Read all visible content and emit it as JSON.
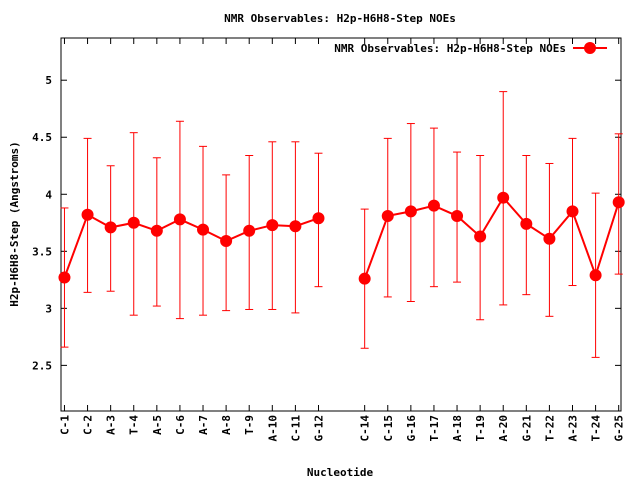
{
  "chart_data": {
    "type": "line",
    "title": "NMR Observables: H2p-H6H8-Step NOEs",
    "xlabel": "Nucleotide",
    "ylabel": "H2p-H6H8-Step (Angstroms)",
    "ylim": [
      2.1,
      5.37
    ],
    "yticks": [
      2.5,
      3,
      3.5,
      4,
      4.5,
      5
    ],
    "ytick_labels": [
      "2.5",
      "3",
      "3.5",
      "4",
      "4.5",
      "5"
    ],
    "legend": "top-right",
    "grid": false,
    "categories": [
      "C-1",
      "C-2",
      "A-3",
      "T-4",
      "A-5",
      "C-6",
      "A-7",
      "A-8",
      "T-9",
      "A-10",
      "C-11",
      "G-12",
      "C-14",
      "C-15",
      "G-16",
      "T-17",
      "A-18",
      "T-19",
      "A-20",
      "G-21",
      "T-22",
      "A-23",
      "T-24",
      "G-25"
    ],
    "x": [
      1,
      2,
      3,
      4,
      5,
      6,
      7,
      8,
      9,
      10,
      11,
      12,
      14,
      15,
      16,
      17,
      18,
      19,
      20,
      21,
      22,
      23,
      24,
      25
    ],
    "xlim": [
      0.85,
      25.1
    ],
    "series": [
      {
        "name": "NMR Observables: H2p-H6H8-Step NOEs",
        "color": "#ff0000",
        "segments": [
          [
            0,
            11
          ],
          [
            12,
            23
          ]
        ],
        "values": [
          3.27,
          3.82,
          3.71,
          3.75,
          3.68,
          3.78,
          3.69,
          3.59,
          3.68,
          3.73,
          3.72,
          3.79,
          3.26,
          3.81,
          3.85,
          3.9,
          3.81,
          3.63,
          3.97,
          3.74,
          3.61,
          3.85,
          3.29,
          3.93
        ],
        "err_low": [
          2.66,
          3.14,
          3.15,
          2.94,
          3.02,
          2.91,
          2.94,
          2.98,
          2.99,
          2.99,
          2.96,
          3.19,
          2.65,
          3.1,
          3.06,
          3.19,
          3.23,
          2.9,
          3.03,
          3.12,
          2.93,
          3.2,
          2.57,
          3.3
        ],
        "err_high": [
          3.88,
          4.49,
          4.25,
          4.54,
          4.32,
          4.64,
          4.42,
          4.17,
          4.34,
          4.46,
          4.46,
          4.36,
          3.87,
          4.49,
          4.62,
          4.58,
          4.37,
          4.34,
          4.9,
          4.34,
          4.27,
          4.49,
          4.01,
          4.53
        ]
      }
    ]
  }
}
